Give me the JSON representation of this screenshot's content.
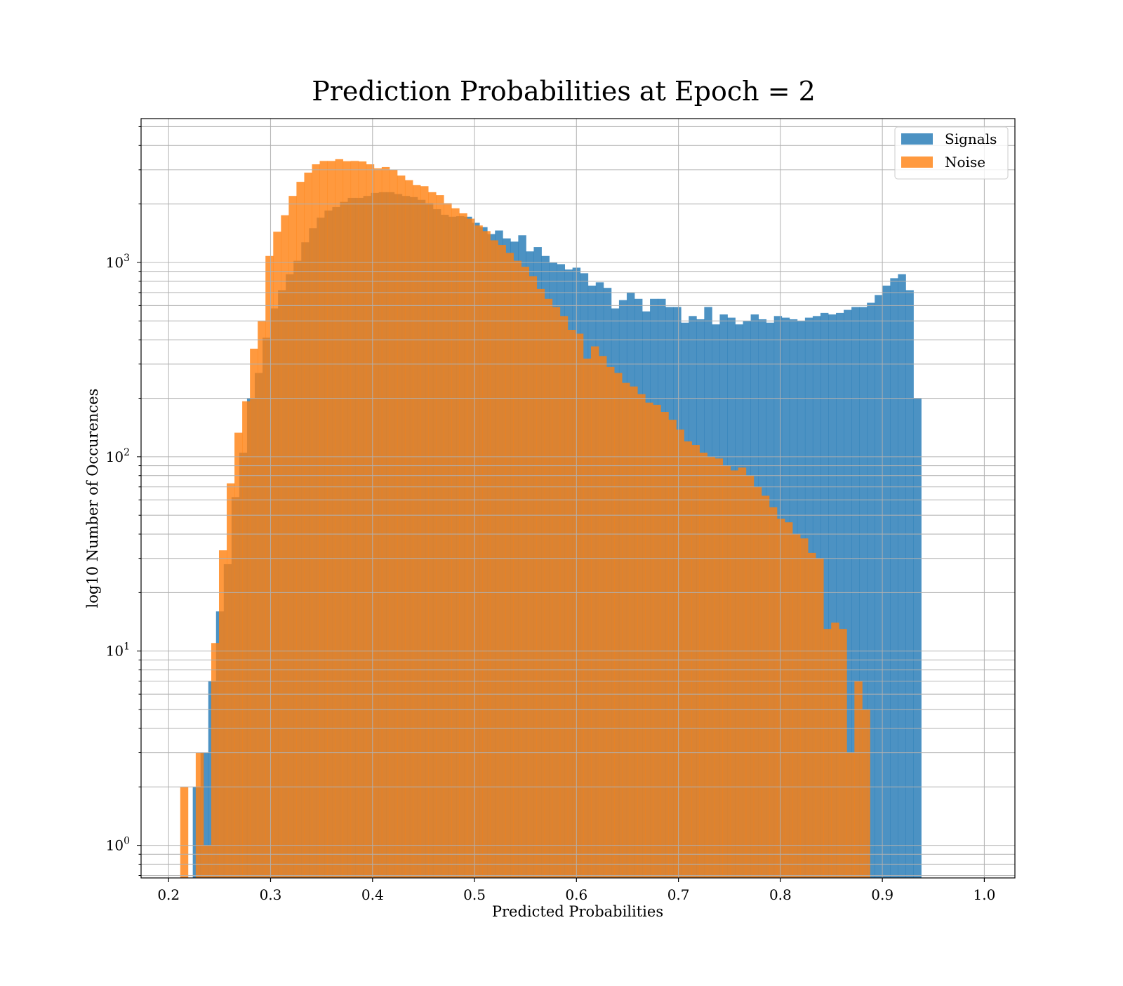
{
  "chart_data": {
    "type": "histogram",
    "title": "Prediction Probabilities at Epoch = 2",
    "xlabel": "Predicted Probabilities",
    "ylabel": "log10 Number of Occurences",
    "xlim": [
      0.173,
      1.03
    ],
    "ylim": [
      0.68,
      5500
    ],
    "yscale": "log",
    "grid": true,
    "legend_position": "top-right",
    "x_ticks": [
      {
        "value": 0.2,
        "label": "0.2"
      },
      {
        "value": 0.3,
        "label": "0.3"
      },
      {
        "value": 0.4,
        "label": "0.4"
      },
      {
        "value": 0.5,
        "label": "0.5"
      },
      {
        "value": 0.6,
        "label": "0.6"
      },
      {
        "value": 0.7,
        "label": "0.7"
      },
      {
        "value": 0.8,
        "label": "0.8"
      },
      {
        "value": 0.9,
        "label": "0.9"
      },
      {
        "value": 1.0,
        "label": "1.0"
      }
    ],
    "y_ticks": [
      {
        "value": 1,
        "base": "10",
        "exp": "0"
      },
      {
        "value": 10,
        "base": "10",
        "exp": "1"
      },
      {
        "value": 100,
        "base": "10",
        "exp": "2"
      },
      {
        "value": 1000,
        "base": "10",
        "exp": "3"
      }
    ],
    "series": [
      {
        "name": "Signals",
        "color": "#1f77b4",
        "opacity": 0.8,
        "bin_start": 0.2237,
        "bin_width": 0.0076,
        "values": [
          2,
          3,
          7,
          16,
          28,
          62,
          105,
          200,
          270,
          410,
          580,
          720,
          870,
          1020,
          1270,
          1500,
          1700,
          1850,
          1930,
          2050,
          2150,
          2150,
          2200,
          2280,
          2300,
          2300,
          2250,
          2200,
          2170,
          2100,
          2020,
          1880,
          1760,
          1720,
          1730,
          1720,
          1600,
          1520,
          1400,
          1460,
          1330,
          1280,
          1380,
          1140,
          1200,
          1080,
          1000,
          980,
          920,
          940,
          880,
          760,
          790,
          740,
          580,
          640,
          700,
          650,
          560,
          650,
          650,
          590,
          590,
          490,
          530,
          510,
          590,
          480,
          540,
          520,
          480,
          500,
          540,
          510,
          490,
          530,
          520,
          510,
          500,
          520,
          530,
          550,
          540,
          550,
          570,
          590,
          590,
          620,
          680,
          760,
          830,
          870,
          720,
          200
        ]
      },
      {
        "name": "Noise",
        "color": "#ff7f0e",
        "opacity": 0.8,
        "bin_start": 0.2114,
        "bin_width": 0.0076,
        "values": [
          2,
          0,
          3,
          1,
          11,
          33,
          73,
          133,
          193,
          360,
          500,
          1080,
          1440,
          1750,
          2200,
          2600,
          2900,
          3200,
          3330,
          3330,
          3400,
          3320,
          3330,
          3310,
          3200,
          3050,
          3100,
          3000,
          2800,
          2650,
          2500,
          2470,
          2300,
          2220,
          2020,
          1900,
          1790,
          1680,
          1550,
          1450,
          1300,
          1230,
          1120,
          1020,
          950,
          850,
          730,
          650,
          590,
          530,
          450,
          430,
          320,
          370,
          330,
          290,
          270,
          240,
          230,
          210,
          190,
          185,
          170,
          155,
          138,
          120,
          115,
          105,
          100,
          98,
          90,
          85,
          88,
          80,
          70,
          63,
          55,
          48,
          46,
          40,
          38,
          32,
          30,
          13,
          14,
          13,
          3,
          7,
          5
        ]
      }
    ]
  }
}
